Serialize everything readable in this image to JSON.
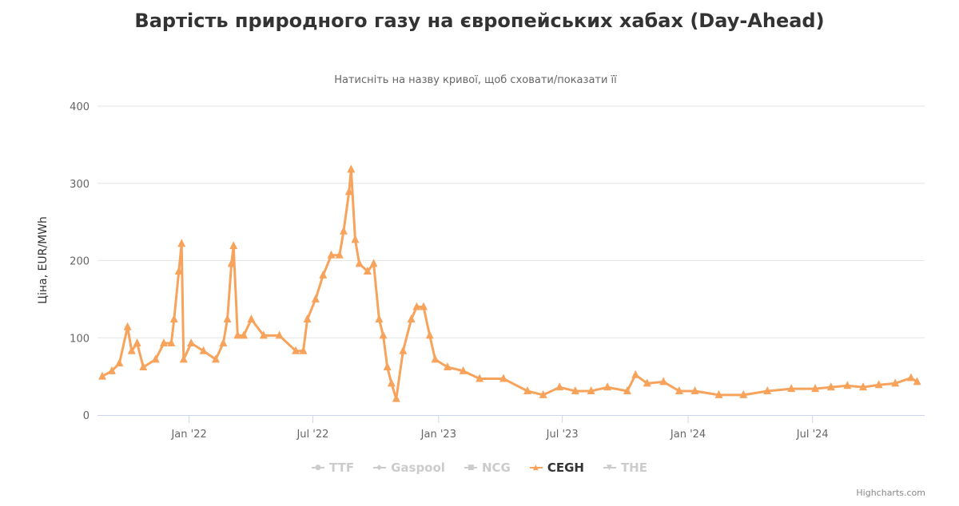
{
  "chart_data": {
    "type": "line",
    "title": "Вартість природного газу на європейських хабах (Day-Ahead)",
    "subtitle": "Натисніть на назву кривої, щоб сховати/показати її",
    "ylabel": "Ціна, EUR/MWh",
    "xlabel": "",
    "ylim": [
      0,
      400
    ],
    "yticks": [
      0,
      100,
      200,
      300,
      400
    ],
    "xlim": [
      "2021-08-20",
      "2024-12-12"
    ],
    "xticks": [
      {
        "date": "2022-01-01",
        "label": "Jan '22"
      },
      {
        "date": "2022-07-01",
        "label": "Jul '22"
      },
      {
        "date": "2023-01-01",
        "label": "Jan '23"
      },
      {
        "date": "2023-07-01",
        "label": "Jul '23"
      },
      {
        "date": "2024-01-01",
        "label": "Jan '24"
      },
      {
        "date": "2024-07-01",
        "label": "Jul '24"
      }
    ],
    "grid": true,
    "legend_position": "bottom",
    "legend": [
      {
        "name": "TTF",
        "visible": false,
        "symbol": "●"
      },
      {
        "name": "Gaspool",
        "visible": false,
        "symbol": "◆"
      },
      {
        "name": "NCG",
        "visible": false,
        "symbol": "■"
      },
      {
        "name": "CEGH",
        "visible": true,
        "symbol": "▲"
      },
      {
        "name": "THE",
        "visible": false,
        "symbol": "▼"
      }
    ],
    "series": [
      {
        "name": "CEGH",
        "color": "#f7a35c",
        "marker": "triangle",
        "points": [
          [
            "2021-08-27",
            50
          ],
          [
            "2021-09-10",
            57
          ],
          [
            "2021-09-21",
            67
          ],
          [
            "2021-10-03",
            114
          ],
          [
            "2021-10-09",
            83
          ],
          [
            "2021-10-17",
            93
          ],
          [
            "2021-10-26",
            62
          ],
          [
            "2021-11-13",
            72
          ],
          [
            "2021-11-25",
            93
          ],
          [
            "2021-12-06",
            93
          ],
          [
            "2021-12-10",
            124
          ],
          [
            "2021-12-17",
            186
          ],
          [
            "2021-12-21",
            222
          ],
          [
            "2021-12-24",
            72
          ],
          [
            "2022-01-04",
            93
          ],
          [
            "2022-01-22",
            83
          ],
          [
            "2022-02-09",
            72
          ],
          [
            "2022-02-20",
            93
          ],
          [
            "2022-02-26",
            124
          ],
          [
            "2022-03-04",
            196
          ],
          [
            "2022-03-07",
            219
          ],
          [
            "2022-03-13",
            103
          ],
          [
            "2022-03-22",
            103
          ],
          [
            "2022-04-02",
            124
          ],
          [
            "2022-04-20",
            103
          ],
          [
            "2022-05-13",
            103
          ],
          [
            "2022-06-06",
            83
          ],
          [
            "2022-06-17",
            83
          ],
          [
            "2022-06-23",
            124
          ],
          [
            "2022-07-05",
            150
          ],
          [
            "2022-07-16",
            181
          ],
          [
            "2022-07-28",
            207
          ],
          [
            "2022-08-09",
            207
          ],
          [
            "2022-08-15",
            238
          ],
          [
            "2022-08-23",
            289
          ],
          [
            "2022-08-26",
            318
          ],
          [
            "2022-09-01",
            227
          ],
          [
            "2022-09-07",
            196
          ],
          [
            "2022-09-19",
            186
          ],
          [
            "2022-09-28",
            196
          ],
          [
            "2022-10-06",
            124
          ],
          [
            "2022-10-12",
            103
          ],
          [
            "2022-10-18",
            62
          ],
          [
            "2022-10-24",
            41
          ],
          [
            "2022-10-31",
            21
          ],
          [
            "2022-11-10",
            83
          ],
          [
            "2022-11-22",
            124
          ],
          [
            "2022-11-30",
            140
          ],
          [
            "2022-12-10",
            140
          ],
          [
            "2022-12-19",
            103
          ],
          [
            "2022-12-27",
            72
          ],
          [
            "2023-01-14",
            62
          ],
          [
            "2023-02-06",
            57
          ],
          [
            "2023-03-02",
            47
          ],
          [
            "2023-04-06",
            47
          ],
          [
            "2023-05-11",
            31
          ],
          [
            "2023-06-03",
            26
          ],
          [
            "2023-06-27",
            36
          ],
          [
            "2023-07-20",
            31
          ],
          [
            "2023-08-12",
            31
          ],
          [
            "2023-09-05",
            36
          ],
          [
            "2023-10-04",
            31
          ],
          [
            "2023-10-16",
            52
          ],
          [
            "2023-11-02",
            41
          ],
          [
            "2023-11-26",
            43
          ],
          [
            "2023-12-19",
            31
          ],
          [
            "2024-01-11",
            31
          ],
          [
            "2024-02-15",
            26
          ],
          [
            "2024-03-22",
            26
          ],
          [
            "2024-04-26",
            31
          ],
          [
            "2024-05-31",
            34
          ],
          [
            "2024-07-05",
            34
          ],
          [
            "2024-07-28",
            36
          ],
          [
            "2024-08-21",
            38
          ],
          [
            "2024-09-13",
            36
          ],
          [
            "2024-10-06",
            39
          ],
          [
            "2024-10-30",
            41
          ],
          [
            "2024-11-22",
            48
          ],
          [
            "2024-12-01",
            43
          ]
        ]
      }
    ],
    "credits": "Highcharts.com"
  }
}
